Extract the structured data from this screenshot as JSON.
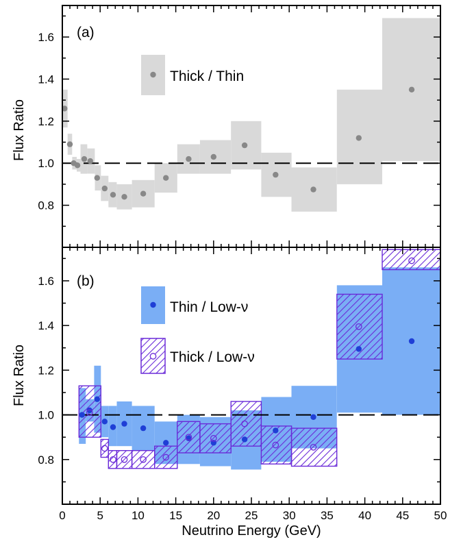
{
  "chart_data": [
    {
      "type": "scatter",
      "panel_label": "(a)",
      "ylabel": "Flux Ratio",
      "xlim": [
        0,
        50
      ],
      "ylim": [
        0.6,
        1.75
      ],
      "yticks": [
        "0.8",
        "1.0",
        "1.2",
        "1.4",
        "1.6"
      ],
      "grid": false,
      "reference_line": {
        "y": 1.0,
        "style": "dashed"
      },
      "legend_position": "upper-middle",
      "series": [
        {
          "name": "Thick / Thin",
          "marker_color": "#888888",
          "band_color": "#d9d9d9",
          "points": [
            {
              "x": 0.3,
              "y": 1.26,
              "xlo": 0.0,
              "xhi": 0.7,
              "ylo": 1.17,
              "yhi": 1.35
            },
            {
              "x": 1.0,
              "y": 1.09,
              "xlo": 0.7,
              "xhi": 1.3,
              "ylo": 1.04,
              "yhi": 1.14
            },
            {
              "x": 1.5,
              "y": 1.0,
              "xlo": 1.3,
              "xhi": 1.9,
              "ylo": 0.97,
              "yhi": 1.03
            },
            {
              "x": 2.0,
              "y": 0.99,
              "xlo": 1.9,
              "xhi": 2.4,
              "ylo": 0.96,
              "yhi": 1.02
            },
            {
              "x": 2.9,
              "y": 1.02,
              "xlo": 2.4,
              "xhi": 3.3,
              "ylo": 0.95,
              "yhi": 1.09
            },
            {
              "x": 3.7,
              "y": 1.01,
              "xlo": 3.3,
              "xhi": 4.3,
              "ylo": 0.95,
              "yhi": 1.07
            },
            {
              "x": 4.6,
              "y": 0.93,
              "xlo": 4.3,
              "xhi": 5.1,
              "ylo": 0.87,
              "yhi": 0.99
            },
            {
              "x": 5.6,
              "y": 0.88,
              "xlo": 5.1,
              "xhi": 6.1,
              "ylo": 0.82,
              "yhi": 0.94
            },
            {
              "x": 6.7,
              "y": 0.85,
              "xlo": 6.1,
              "xhi": 7.2,
              "ylo": 0.79,
              "yhi": 0.91
            },
            {
              "x": 8.2,
              "y": 0.84,
              "xlo": 7.2,
              "xhi": 9.2,
              "ylo": 0.78,
              "yhi": 0.9
            },
            {
              "x": 10.7,
              "y": 0.855,
              "xlo": 9.2,
              "xhi": 12.2,
              "ylo": 0.79,
              "yhi": 0.92
            },
            {
              "x": 13.7,
              "y": 0.93,
              "xlo": 12.2,
              "xhi": 15.2,
              "ylo": 0.86,
              "yhi": 1.0
            },
            {
              "x": 16.7,
              "y": 1.02,
              "xlo": 15.2,
              "xhi": 18.2,
              "ylo": 0.95,
              "yhi": 1.09
            },
            {
              "x": 20.0,
              "y": 1.03,
              "xlo": 18.2,
              "xhi": 22.3,
              "ylo": 0.95,
              "yhi": 1.11
            },
            {
              "x": 24.1,
              "y": 1.085,
              "xlo": 22.3,
              "xhi": 26.3,
              "ylo": 0.97,
              "yhi": 1.2
            },
            {
              "x": 28.2,
              "y": 0.945,
              "xlo": 26.3,
              "xhi": 30.3,
              "ylo": 0.84,
              "yhi": 1.05
            },
            {
              "x": 33.2,
              "y": 0.875,
              "xlo": 30.3,
              "xhi": 36.3,
              "ylo": 0.77,
              "yhi": 0.98
            },
            {
              "x": 39.2,
              "y": 1.12,
              "xlo": 36.3,
              "xhi": 42.3,
              "ylo": 0.9,
              "yhi": 1.35
            },
            {
              "x": 46.2,
              "y": 1.35,
              "xlo": 42.3,
              "xhi": 50.0,
              "ylo": 1.01,
              "yhi": 1.69
            }
          ]
        }
      ]
    },
    {
      "type": "scatter",
      "panel_label": "(b)",
      "xlabel": "Neutrino Energy (GeV)",
      "ylabel": "Flux Ratio",
      "xlim": [
        0,
        50
      ],
      "ylim": [
        0.6,
        1.75
      ],
      "xticks": [
        "0",
        "5",
        "10",
        "15",
        "20",
        "25",
        "30",
        "35",
        "40",
        "45",
        "50"
      ],
      "yticks": [
        "0.8",
        "1.0",
        "1.2",
        "1.4",
        "1.6"
      ],
      "grid": false,
      "reference_line": {
        "y": 1.0,
        "style": "dashed"
      },
      "legend_position": "upper-middle",
      "series": [
        {
          "name": "Thin / Low-ν",
          "marker": "filled-circle",
          "marker_color": "#1f3fd6",
          "band_color": "#7aaef5",
          "points": [
            {
              "x": 2.6,
              "y": 1.0,
              "xlo": 2.2,
              "xhi": 3.1,
              "ylo": 0.87,
              "yhi": 1.12
            },
            {
              "x": 3.6,
              "y": 1.02,
              "xlo": 3.1,
              "xhi": 4.2,
              "ylo": 0.97,
              "yhi": 1.07
            },
            {
              "x": 4.6,
              "y": 1.07,
              "xlo": 4.2,
              "xhi": 5.1,
              "ylo": 0.92,
              "yhi": 1.22
            },
            {
              "x": 5.6,
              "y": 0.97,
              "xlo": 5.1,
              "xhi": 6.1,
              "ylo": 0.9,
              "yhi": 1.04
            },
            {
              "x": 6.7,
              "y": 0.945,
              "xlo": 6.1,
              "xhi": 7.2,
              "ylo": 0.86,
              "yhi": 1.04
            },
            {
              "x": 8.2,
              "y": 0.96,
              "xlo": 7.2,
              "xhi": 9.2,
              "ylo": 0.86,
              "yhi": 1.06
            },
            {
              "x": 10.7,
              "y": 0.94,
              "xlo": 9.2,
              "xhi": 12.2,
              "ylo": 0.84,
              "yhi": 1.04
            },
            {
              "x": 13.7,
              "y": 0.875,
              "xlo": 12.2,
              "xhi": 15.2,
              "ylo": 0.78,
              "yhi": 0.97
            },
            {
              "x": 16.7,
              "y": 0.895,
              "xlo": 15.2,
              "xhi": 18.2,
              "ylo": 0.78,
              "yhi": 1.0
            },
            {
              "x": 20.0,
              "y": 0.875,
              "xlo": 18.2,
              "xhi": 22.3,
              "ylo": 0.77,
              "yhi": 0.99
            },
            {
              "x": 24.1,
              "y": 0.89,
              "xlo": 22.3,
              "xhi": 26.3,
              "ylo": 0.755,
              "yhi": 1.02
            },
            {
              "x": 28.2,
              "y": 0.93,
              "xlo": 26.3,
              "xhi": 30.3,
              "ylo": 0.79,
              "yhi": 1.08
            },
            {
              "x": 33.2,
              "y": 0.99,
              "xlo": 30.3,
              "xhi": 36.3,
              "ylo": 0.85,
              "yhi": 1.13
            },
            {
              "x": 39.2,
              "y": 1.295,
              "xlo": 36.3,
              "xhi": 42.3,
              "ylo": 1.01,
              "yhi": 1.58
            },
            {
              "x": 46.2,
              "y": 1.33,
              "xlo": 42.3,
              "xhi": 50.0,
              "ylo": 1.0,
              "yhi": 1.66
            }
          ]
        },
        {
          "name": "Thick / Low-ν",
          "marker": "open-circle",
          "marker_color": "#6a2ad8",
          "band_color": "#6a2ad8",
          "band_style": "hatched",
          "points": [
            {
              "x": 3.6,
              "y": 1.01,
              "xlo": 2.2,
              "xhi": 5.1,
              "ylo": 0.9,
              "yhi": 1.13
            },
            {
              "x": 5.6,
              "y": 0.85,
              "xlo": 5.1,
              "xhi": 6.1,
              "ylo": 0.81,
              "yhi": 0.89
            },
            {
              "x": 6.7,
              "y": 0.8,
              "xlo": 6.1,
              "xhi": 7.2,
              "ylo": 0.76,
              "yhi": 0.84
            },
            {
              "x": 8.2,
              "y": 0.8,
              "xlo": 7.2,
              "xhi": 9.2,
              "ylo": 0.76,
              "yhi": 0.84
            },
            {
              "x": 10.7,
              "y": 0.8,
              "xlo": 9.2,
              "xhi": 12.2,
              "ylo": 0.76,
              "yhi": 0.84
            },
            {
              "x": 13.7,
              "y": 0.81,
              "xlo": 12.2,
              "xhi": 15.2,
              "ylo": 0.76,
              "yhi": 0.86
            },
            {
              "x": 16.7,
              "y": 0.9,
              "xlo": 15.2,
              "xhi": 18.2,
              "ylo": 0.83,
              "yhi": 0.97
            },
            {
              "x": 20.0,
              "y": 0.895,
              "xlo": 18.2,
              "xhi": 22.3,
              "ylo": 0.83,
              "yhi": 0.96
            },
            {
              "x": 24.1,
              "y": 0.96,
              "xlo": 22.3,
              "xhi": 26.3,
              "ylo": 0.86,
              "yhi": 1.06
            },
            {
              "x": 28.2,
              "y": 0.865,
              "xlo": 26.3,
              "xhi": 30.3,
              "ylo": 0.78,
              "yhi": 0.95
            },
            {
              "x": 33.2,
              "y": 0.855,
              "xlo": 30.3,
              "xhi": 36.3,
              "ylo": 0.77,
              "yhi": 0.94
            },
            {
              "x": 39.2,
              "y": 1.395,
              "xlo": 36.3,
              "xhi": 42.3,
              "ylo": 1.25,
              "yhi": 1.54
            },
            {
              "x": 46.2,
              "y": 1.69,
              "xlo": 42.3,
              "xhi": 50.0,
              "ylo": 1.65,
              "yhi": 1.74
            }
          ]
        }
      ]
    }
  ]
}
